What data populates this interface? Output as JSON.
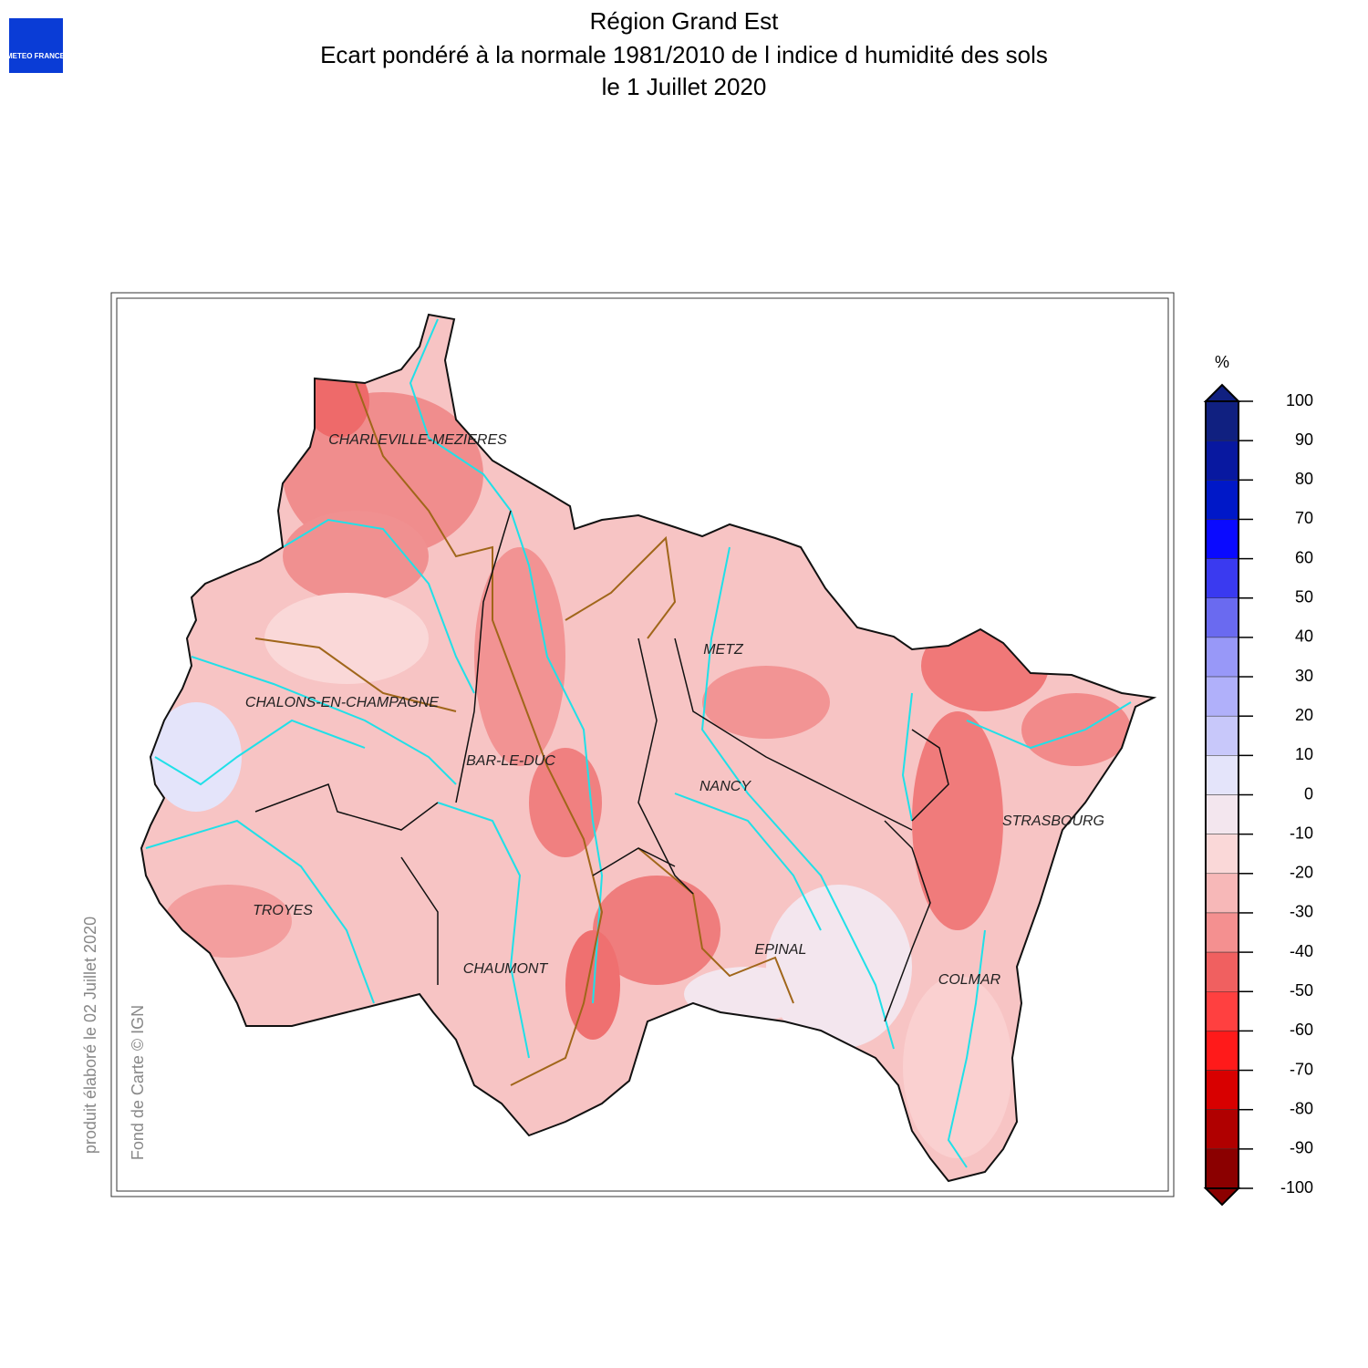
{
  "logo": "METEO FRANCE",
  "title": [
    "Région Grand Est",
    "Ecart pondéré à la normale 1981/2010 de l indice d humidité des sols",
    "le 1 Juillet 2020"
  ],
  "side_notes": [
    "produit élaboré le 02 Juillet 2020",
    "Fond de Carte © IGN"
  ],
  "cities": [
    "CHARLEVILLE-MEZIERES",
    "METZ",
    "CHALONS-EN-CHAMPAGNE",
    "BAR-LE-DUC",
    "NANCY",
    "STRASBOURG",
    "TROYES",
    "EPINAL",
    "CHAUMONT",
    "COLMAR"
  ],
  "colorbar": {
    "unit": "%",
    "lim": [
      -100,
      100
    ],
    "ticks": [
      100,
      90,
      80,
      70,
      60,
      50,
      40,
      30,
      20,
      10,
      0,
      -10,
      -20,
      -30,
      -40,
      -50,
      -60,
      -70,
      -80,
      -90,
      -100
    ],
    "colors": [
      "#102080",
      "#0818a0",
      "#0018c8",
      "#0a0aff",
      "#3a3af0",
      "#6a6af0",
      "#9898f8",
      "#b0b0fa",
      "#c8c8fa",
      "#e4e4fa",
      "#f3e6ee",
      "#fad8d8",
      "#f7b8b8",
      "#f49090",
      "#f06060",
      "#ff4040",
      "#ff1a1a",
      "#d80000",
      "#b00000",
      "#8b0000"
    ]
  }
}
